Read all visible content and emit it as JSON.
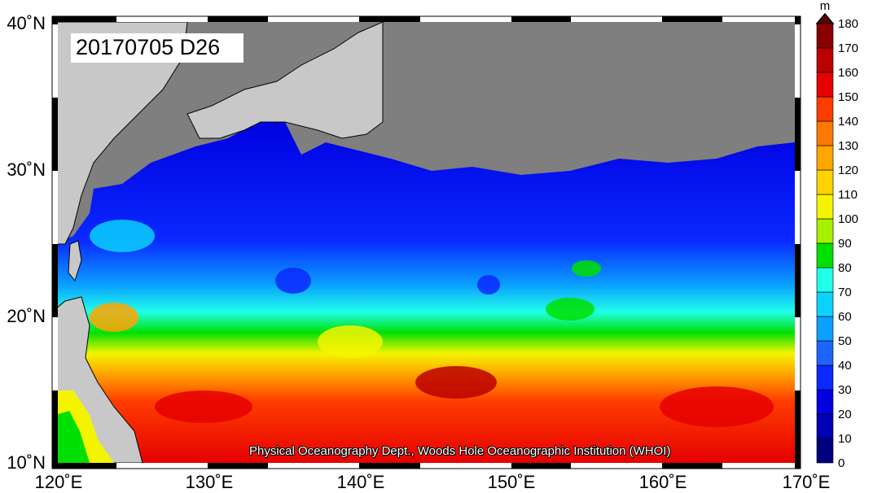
{
  "title": "20170705 D26",
  "credit": "Physical Oceanography Dept., Woods Hole Oceanographic Institution (WHOI)",
  "colorbar": {
    "unit": "m",
    "labels": [
      "0",
      "10",
      "20",
      "30",
      "40",
      "50",
      "60",
      "70",
      "80",
      "90",
      "100",
      "110",
      "120",
      "130",
      "140",
      "150",
      "160",
      "170",
      "180"
    ],
    "colors": [
      "#00007f",
      "#0000b4",
      "#0000e0",
      "#0a28ff",
      "#1e64ff",
      "#0aa0ff",
      "#0ad2ff",
      "#20ffe8",
      "#00e000",
      "#a6f000",
      "#f4f400",
      "#ffd200",
      "#ffa500",
      "#ff7800",
      "#ff3c00",
      "#e60000",
      "#bb0000",
      "#8a0000",
      "#5a0000"
    ]
  },
  "axes": {
    "x_labels": [
      "120˚E",
      "130˚E",
      "140˚E",
      "150˚E",
      "160˚E",
      "170˚E"
    ],
    "y_labels": [
      "40˚N",
      "30˚N",
      "20˚N",
      "10˚N"
    ]
  },
  "map": {
    "lon_range": [
      120,
      170
    ],
    "lat_range": [
      10,
      40
    ],
    "land_color": "#7f7f7f",
    "other_land_color": "#c8c8c8"
  }
}
